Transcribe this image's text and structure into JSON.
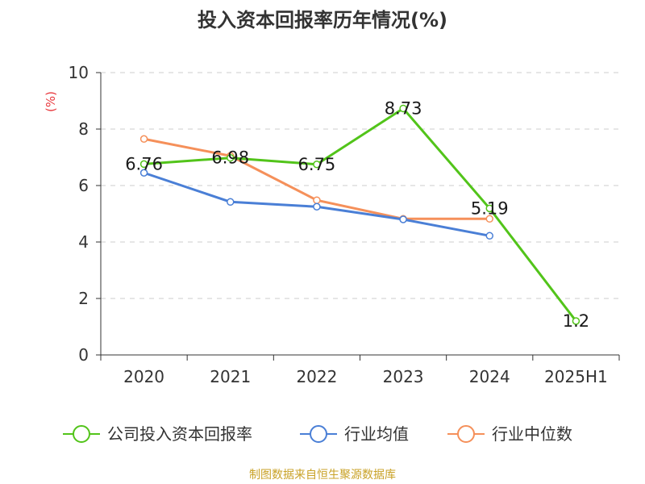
{
  "title": "投入资本回报率历年情况(%)",
  "source": "制图数据来自恒生聚源数据库",
  "chart_data": {
    "type": "line",
    "title": "投入资本回报率历年情况(%)",
    "ylabel": "(%)",
    "ylim": [
      0,
      10
    ],
    "yticks": [
      "0",
      "2",
      "4",
      "6",
      "8",
      "10"
    ],
    "grid": "horizontal-dashed",
    "legend_position": "bottom",
    "categories": [
      "2020",
      "2021",
      "2022",
      "2023",
      "2024",
      "2025H1"
    ],
    "series": [
      {
        "name": "公司投入资本回报率",
        "color": "#52c41a",
        "values": [
          6.76,
          6.98,
          6.75,
          8.73,
          5.19,
          1.2
        ],
        "labels": [
          "6.76",
          "6.98",
          "6.75",
          "8.73",
          "5.19",
          "1.2"
        ]
      },
      {
        "name": "行业均值",
        "color": "#4a7fd6",
        "values": [
          6.45,
          5.42,
          5.25,
          4.8,
          4.22,
          null
        ]
      },
      {
        "name": "行业中位数",
        "color": "#f5905a",
        "values": [
          7.65,
          7.05,
          5.48,
          4.82,
          4.82,
          null
        ]
      }
    ]
  }
}
